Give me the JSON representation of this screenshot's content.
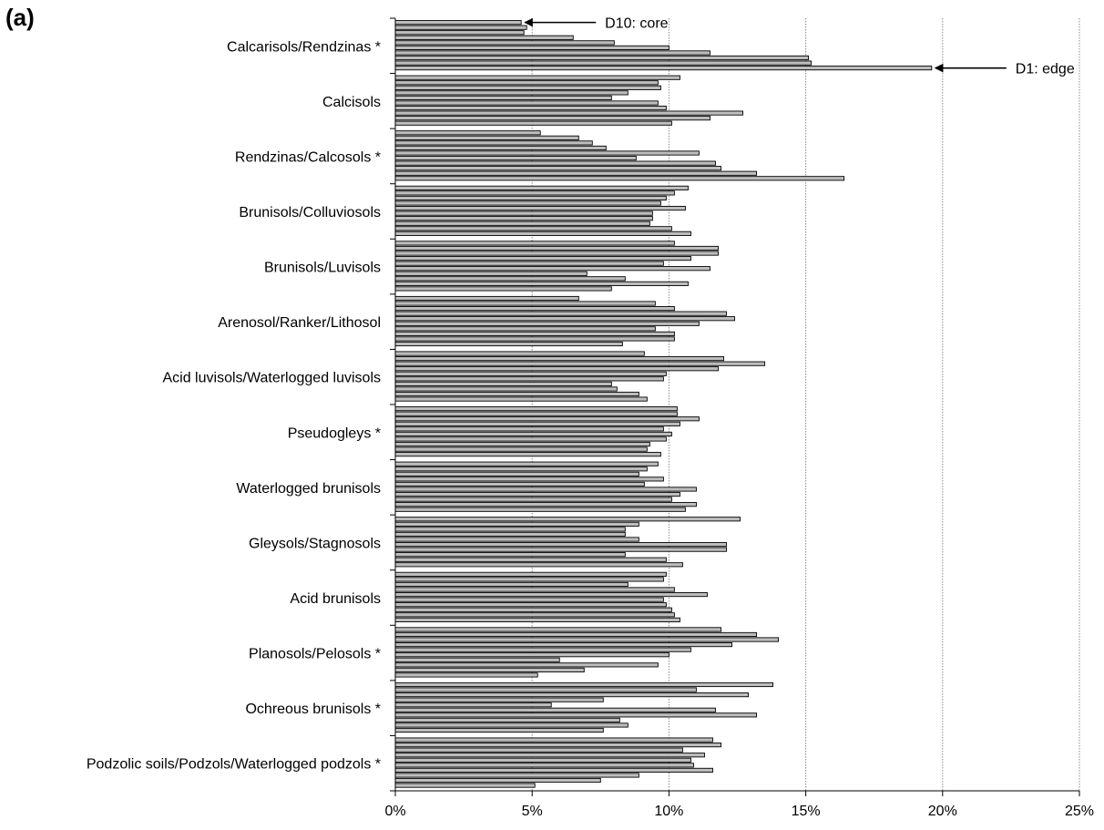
{
  "panel_label": "(a)",
  "chart_data": {
    "type": "bar",
    "orientation": "horizontal",
    "title": "",
    "xlabel": "",
    "ylabel": "",
    "xlim": [
      0,
      25
    ],
    "x_tick_values": [
      0,
      5,
      10,
      15,
      20,
      25
    ],
    "x_tick_labels": [
      "0%",
      "5%",
      "10%",
      "15%",
      "20%",
      "25%"
    ],
    "grid": "vertical dotted gridlines at major x ticks",
    "bar_color": "#bdbdbd",
    "bar_edge_color": "#000000",
    "series_order": "within each category, bars run from D10 (top) to D1 (bottom)",
    "annotations": [
      {
        "text": "D10: core",
        "category": "Calcarisols/Rendzinas *",
        "bar_index": 0
      },
      {
        "text": "D1: edge",
        "category": "Calcarisols/Rendzinas *",
        "bar_index": 9
      }
    ],
    "categories": [
      {
        "name": "Calcarisols/Rendzinas *",
        "values": [
          4.6,
          4.8,
          4.7,
          6.5,
          8.0,
          10.0,
          11.5,
          15.1,
          15.2,
          19.6
        ]
      },
      {
        "name": "Calcisols",
        "values": [
          10.4,
          9.6,
          9.7,
          8.5,
          7.9,
          9.6,
          9.9,
          12.7,
          11.5,
          10.1
        ]
      },
      {
        "name": "Rendzinas/Calcosols *",
        "values": [
          5.3,
          6.7,
          7.2,
          7.7,
          11.1,
          8.8,
          11.7,
          11.9,
          13.2,
          16.4
        ]
      },
      {
        "name": "Brunisols/Colluviosols",
        "values": [
          10.7,
          10.2,
          9.9,
          9.7,
          10.6,
          9.4,
          9.4,
          9.3,
          10.1,
          10.8
        ]
      },
      {
        "name": "Brunisols/Luvisols",
        "values": [
          10.2,
          11.8,
          11.8,
          10.8,
          9.8,
          11.5,
          7.0,
          8.4,
          10.7,
          7.9
        ]
      },
      {
        "name": "Arenosol/Ranker/Lithosol",
        "values": [
          6.7,
          9.5,
          10.2,
          12.1,
          12.4,
          11.1,
          9.5,
          10.2,
          10.2,
          8.3
        ]
      },
      {
        "name": "Acid luvisols/Waterlogged luvisols",
        "values": [
          9.1,
          12.0,
          13.5,
          11.8,
          9.9,
          9.8,
          7.9,
          8.1,
          8.9,
          9.2
        ]
      },
      {
        "name": "Pseudogleys *",
        "values": [
          10.3,
          10.3,
          11.1,
          10.4,
          9.8,
          10.1,
          9.9,
          9.3,
          9.2,
          9.7
        ]
      },
      {
        "name": "Waterlogged brunisols",
        "values": [
          9.6,
          9.2,
          8.9,
          9.8,
          9.1,
          11.0,
          10.4,
          10.1,
          11.0,
          10.6
        ]
      },
      {
        "name": "Gleysols/Stagnosols",
        "values": [
          12.6,
          8.9,
          8.4,
          8.4,
          8.9,
          12.1,
          12.1,
          8.4,
          9.9,
          10.5
        ]
      },
      {
        "name": "Acid brunisols",
        "values": [
          9.9,
          9.8,
          8.5,
          10.2,
          11.4,
          9.8,
          9.9,
          10.1,
          10.2,
          10.4
        ]
      },
      {
        "name": "Planosols/Pelosols *",
        "values": [
          11.9,
          13.2,
          14.0,
          12.3,
          10.8,
          10.0,
          6.0,
          9.6,
          6.9,
          5.2
        ]
      },
      {
        "name": "Ochreous brunisols *",
        "values": [
          13.8,
          11.0,
          12.9,
          7.6,
          5.7,
          11.7,
          13.2,
          8.2,
          8.5,
          7.6
        ]
      },
      {
        "name": "Podzolic soils/Podzols/Waterlogged podzols *",
        "values": [
          11.6,
          11.9,
          10.5,
          11.3,
          10.8,
          10.9,
          11.6,
          8.9,
          7.5,
          5.1
        ]
      }
    ]
  }
}
